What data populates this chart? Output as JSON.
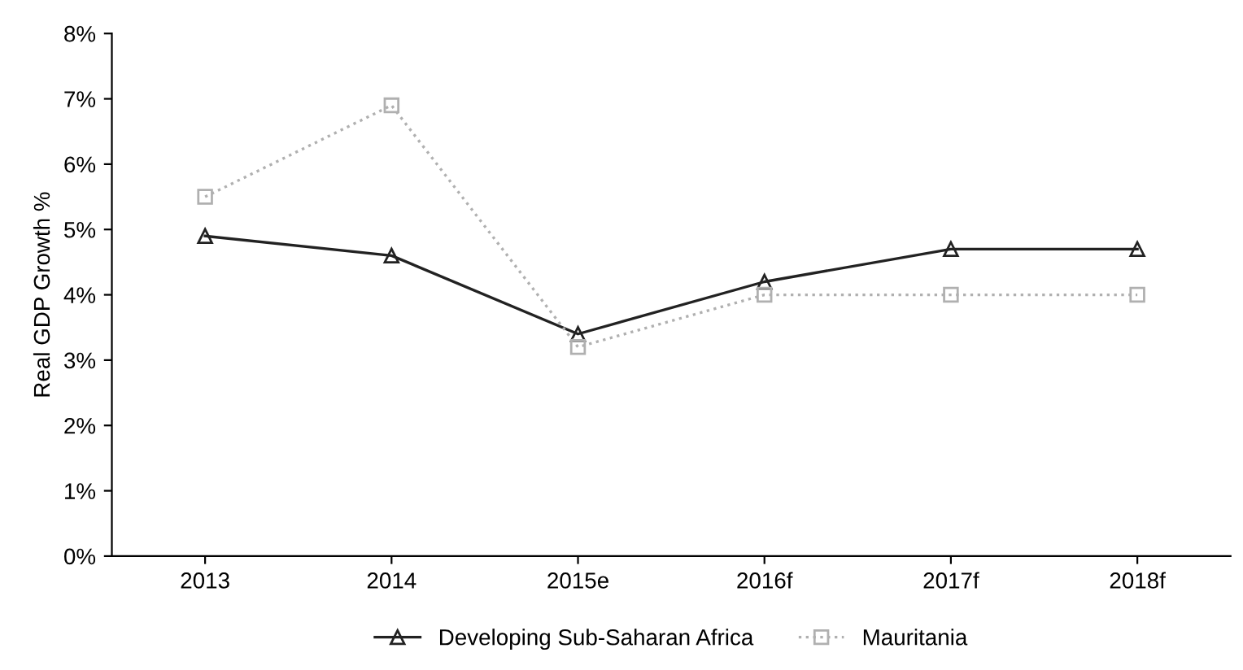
{
  "chart_data": {
    "type": "line",
    "ylabel": "Real GDP Growth %",
    "categories": [
      "2013",
      "2014",
      "2015e",
      "2016f",
      "2017f",
      "2018f"
    ],
    "ylim": [
      0,
      8
    ],
    "yticks": [
      {
        "value": 0,
        "label": "0%"
      },
      {
        "value": 1,
        "label": "1%"
      },
      {
        "value": 2,
        "label": "2%"
      },
      {
        "value": 3,
        "label": "3%"
      },
      {
        "value": 4,
        "label": "4%"
      },
      {
        "value": 5,
        "label": "5%"
      },
      {
        "value": 6,
        "label": "6%"
      },
      {
        "value": 7,
        "label": "7%"
      },
      {
        "value": 8,
        "label": "8%"
      }
    ],
    "grid": false,
    "legend": "bottom",
    "series": [
      {
        "name": "Developing Sub-Saharan Africa",
        "color": "#222222",
        "marker": "triangle",
        "line_style": "solid",
        "values": [
          4.9,
          4.6,
          3.4,
          4.2,
          4.7,
          4.7
        ]
      },
      {
        "name": "Mauritania",
        "color": "#b0b0b0",
        "marker": "square",
        "line_style": "dotted",
        "values": [
          5.5,
          6.9,
          3.2,
          4.0,
          4.0,
          4.0
        ]
      }
    ]
  }
}
